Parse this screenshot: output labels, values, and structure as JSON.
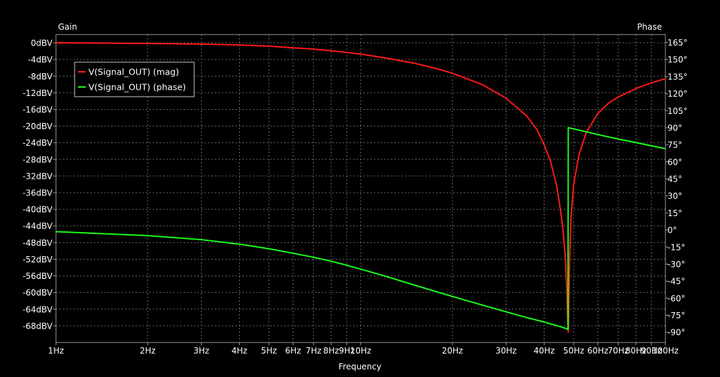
{
  "chart_data": {
    "type": "line",
    "title": "",
    "xlabel": "Frequency",
    "ylabel_left": "Gain",
    "ylabel_right": "Phase",
    "x_scale": "log",
    "x_range": [
      1,
      100
    ],
    "x_ticks": [
      {
        "value": 1,
        "label": "1Hz"
      },
      {
        "value": 2,
        "label": "2Hz"
      },
      {
        "value": 3,
        "label": "3Hz"
      },
      {
        "value": 4,
        "label": "4Hz"
      },
      {
        "value": 5,
        "label": "5Hz"
      },
      {
        "value": 6,
        "label": "6Hz"
      },
      {
        "value": 7,
        "label": "7Hz"
      },
      {
        "value": 8,
        "label": "8Hz"
      },
      {
        "value": 9,
        "label": "9Hz"
      },
      {
        "value": 10,
        "label": "10Hz"
      },
      {
        "value": 20,
        "label": "20Hz"
      },
      {
        "value": 30,
        "label": "30Hz"
      },
      {
        "value": 40,
        "label": "40Hz"
      },
      {
        "value": 50,
        "label": "50Hz"
      },
      {
        "value": 60,
        "label": "60Hz"
      },
      {
        "value": 70,
        "label": "70Hz"
      },
      {
        "value": 80,
        "label": "80Hz"
      },
      {
        "value": 90,
        "label": "90Hz"
      },
      {
        "value": 100,
        "label": "100Hz"
      }
    ],
    "y_left_range": [
      -72,
      2
    ],
    "y_left_ticks": [
      "0dBV",
      "-4dBV",
      "-8dBV",
      "-12dBV",
      "-16dBV",
      "-20dBV",
      "-24dBV",
      "-28dBV",
      "-32dBV",
      "-36dBV",
      "-40dBV",
      "-44dBV",
      "-48dBV",
      "-52dBV",
      "-56dBV",
      "-60dBV",
      "-64dBV",
      "-68dBV"
    ],
    "y_left_tick_values": [
      0,
      -4,
      -8,
      -12,
      -16,
      -20,
      -24,
      -28,
      -32,
      -36,
      -40,
      -44,
      -48,
      -52,
      -56,
      -60,
      -64,
      -68
    ],
    "y_right_range": [
      -99,
      172
    ],
    "y_right_ticks": [
      "165°",
      "150°",
      "135°",
      "120°",
      "105°",
      "90°",
      "75°",
      "60°",
      "45°",
      "30°",
      "15°",
      "0°",
      "-15°",
      "-30°",
      "-45°",
      "-60°",
      "-75°",
      "-90°"
    ],
    "y_right_tick_values": [
      165,
      150,
      135,
      120,
      105,
      90,
      75,
      60,
      45,
      30,
      15,
      0,
      -15,
      -30,
      -45,
      -60,
      -75,
      -90
    ],
    "grid": true,
    "legend_position": "top-left",
    "series": [
      {
        "name": "V(Signal_OUT) (mag)",
        "color": "#ff1a1a",
        "axis": "left",
        "x": [
          1,
          1.5,
          2,
          2.5,
          3,
          3.5,
          4,
          5,
          6,
          7,
          8,
          9,
          10,
          12,
          15,
          18,
          20,
          25,
          30,
          35,
          38,
          40,
          42,
          44,
          45,
          46,
          47,
          47.5,
          47.8,
          48,
          48.2,
          48.5,
          49,
          50,
          52,
          55,
          60,
          65,
          70,
          80,
          90,
          100
        ],
        "y": [
          0,
          -0.07,
          -0.15,
          -0.23,
          -0.3,
          -0.4,
          -0.5,
          -0.8,
          -1.2,
          -1.5,
          -1.9,
          -2.3,
          -2.7,
          -3.6,
          -4.9,
          -6.3,
          -7.3,
          -10,
          -13.3,
          -17.5,
          -21,
          -24.5,
          -28.5,
          -34.5,
          -39,
          -44,
          -52,
          -60,
          -67,
          -69.5,
          -64,
          -52,
          -42,
          -34,
          -27,
          -21.5,
          -17,
          -14.5,
          -13,
          -11,
          -9.6,
          -8.6
        ]
      },
      {
        "name": "V(Signal_OUT) (phase)",
        "color": "#1aff1a",
        "axis": "right",
        "x": [
          1,
          1.5,
          2,
          3,
          4,
          5,
          6,
          7,
          8,
          9,
          10,
          12,
          15,
          20,
          25,
          30,
          35,
          40,
          45,
          47,
          47.9,
          48,
          50,
          60,
          70,
          80,
          90,
          100
        ],
        "y": [
          -1.5,
          -3.5,
          -5,
          -8.5,
          -12.5,
          -16.5,
          -20.5,
          -24,
          -27.5,
          -31,
          -34.5,
          -40.5,
          -48.5,
          -58.5,
          -66,
          -72,
          -77,
          -81,
          -85,
          -86.5,
          -87.5,
          90,
          89,
          84,
          80,
          77,
          74,
          71.5
        ]
      }
    ]
  }
}
